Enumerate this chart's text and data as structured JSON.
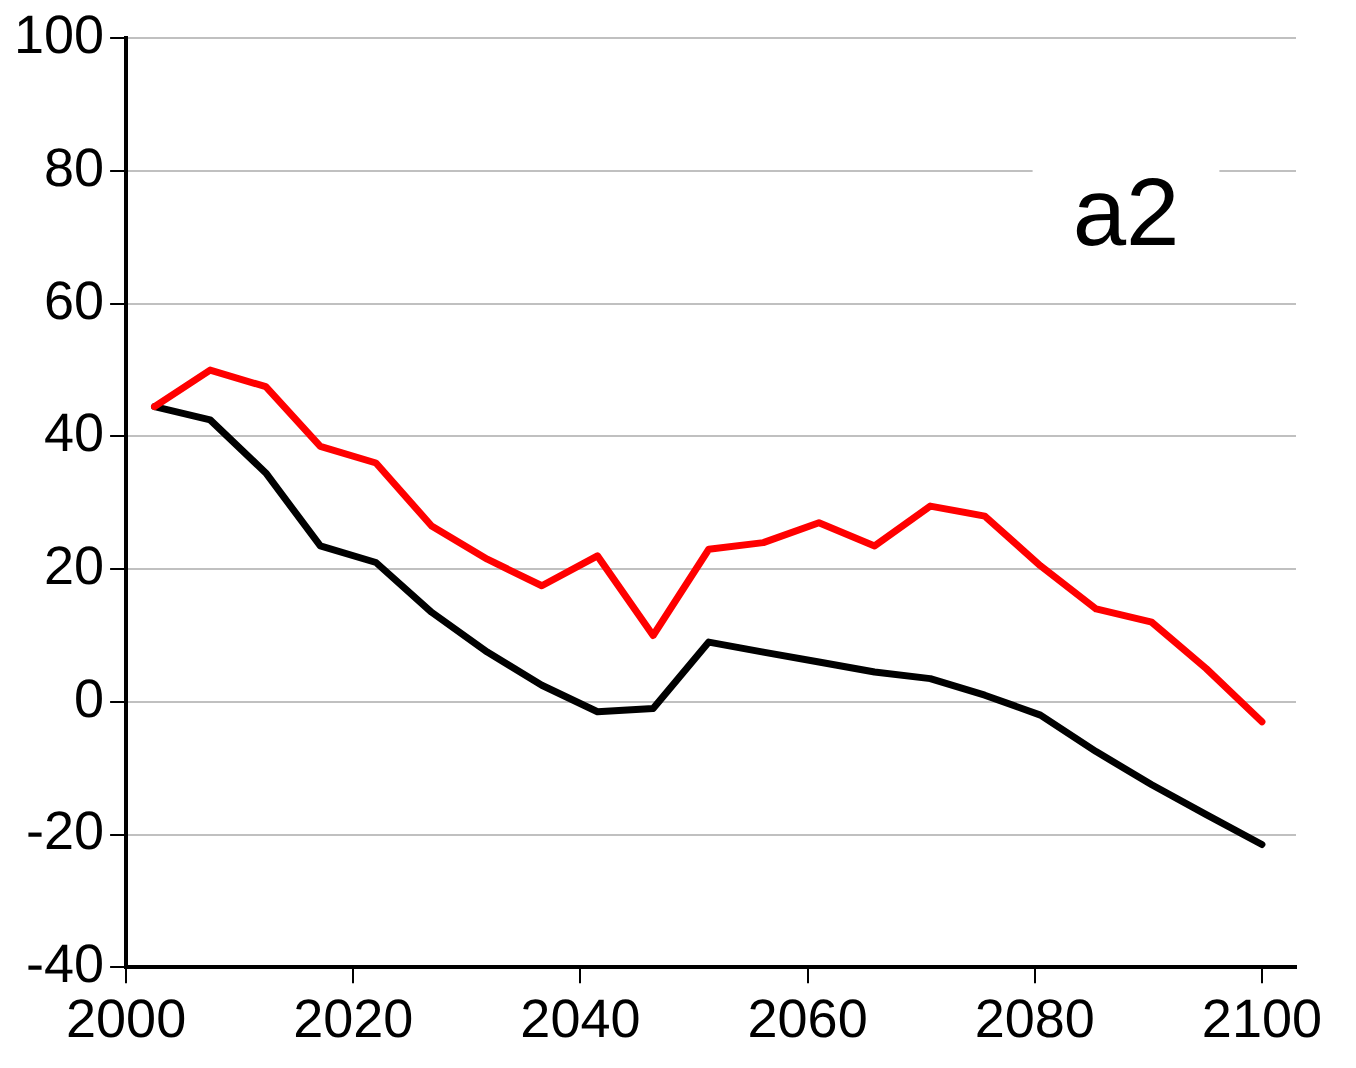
{
  "chart_data": {
    "type": "line",
    "annotations": [
      "a2"
    ],
    "x": [
      2002.5,
      2007.4,
      2012.3,
      2017.1,
      2022,
      2026.9,
      2031.8,
      2036.6,
      2041.5,
      2046.4,
      2051.3,
      2056.1,
      2061,
      2065.9,
      2070.8,
      2075.6,
      2080.5,
      2085.4,
      2090.3,
      2095.1,
      2100
    ],
    "series": [
      {
        "color": "#ff0000",
        "values": [
          44.5,
          50,
          47.5,
          38.5,
          36,
          26.5,
          21.5,
          17.5,
          22,
          10,
          23,
          24,
          27,
          23.5,
          29.5,
          28,
          20.5,
          14,
          12,
          5,
          -3
        ]
      },
      {
        "color": "#000000",
        "values": [
          44.5,
          42.5,
          34.5,
          23.5,
          21,
          13.5,
          7.5,
          2.5,
          -1.5,
          -1,
          9,
          7.5,
          6,
          4.5,
          3.5,
          1,
          -2,
          -7.5,
          -12.5,
          -17,
          -21.5
        ]
      }
    ],
    "xlim": [
      2000,
      2103
    ],
    "xticks": [
      2000,
      2020,
      2040,
      2060,
      2080,
      2100
    ],
    "ylim": [
      -40,
      100
    ],
    "yticks": [
      -40,
      -20,
      0,
      20,
      40,
      60,
      80,
      100
    ],
    "grid": "y",
    "legend": false,
    "marker": "none",
    "line_style": "solid"
  }
}
